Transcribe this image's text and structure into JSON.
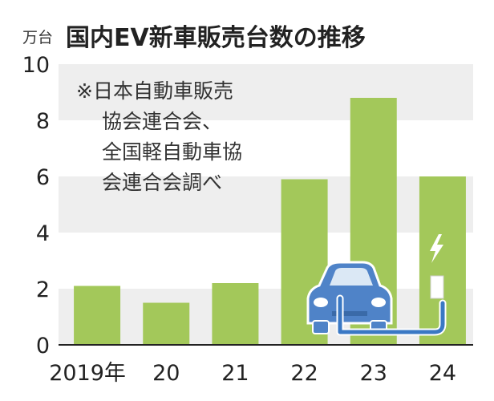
{
  "chart_data": {
    "type": "bar",
    "unit_label": "万台",
    "title": "国内EV新車販売台数の推移",
    "categories": [
      "2019年",
      "20",
      "21",
      "22",
      "23",
      "24"
    ],
    "values": [
      2.1,
      1.5,
      2.2,
      5.9,
      8.8,
      6.0
    ],
    "ylim": [
      0,
      10
    ],
    "yticks": [
      0,
      2,
      4,
      6,
      8,
      10
    ],
    "grid": "alternating-bands",
    "bar_color": "#a3c85a",
    "band_color": "#eeeeee",
    "source_note": [
      "※日本自動車販売",
      "協会連合会、",
      "全国軽自動車協",
      "会連合会調べ"
    ],
    "decoration": [
      "ev-car-icon",
      "charger-icon",
      "lightning-icon"
    ]
  }
}
